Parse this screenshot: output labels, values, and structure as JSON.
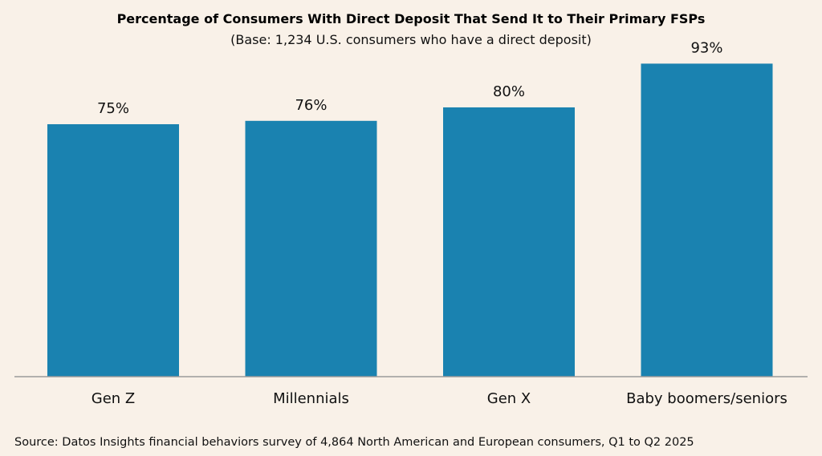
{
  "chart_data": {
    "type": "bar",
    "title": "Percentage of Consumers With Direct Deposit That Send It to Their Primary FSPs",
    "subtitle": "(Base: 1,234 U.S. consumers who have a direct deposit)",
    "categories": [
      "Gen Z",
      "Millennials",
      "Gen X",
      "Baby boomers/seniors"
    ],
    "values": [
      75,
      76,
      80,
      93
    ],
    "value_labels": [
      "75%",
      "76%",
      "80%",
      "93%"
    ],
    "xlabel": "",
    "ylabel": "",
    "ylim": [
      0,
      100
    ],
    "grid": false,
    "legend": "none",
    "bar_color": "#1a82b0",
    "axis_color": "#9a9a9a",
    "source": "Source: Datos Insights financial behaviors survey of 4,864 North American and European consumers, Q1 to Q2 2025"
  }
}
